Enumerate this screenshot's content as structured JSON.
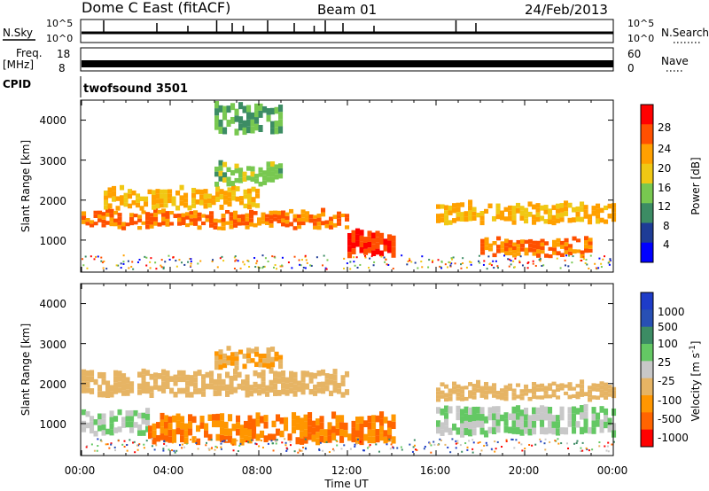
{
  "header": {
    "station": "Dome C East (fitACF)",
    "beam": "Beam 01",
    "date": "24/Feb/2013"
  },
  "strips": {
    "nsky_label": "N.Sky",
    "nsky_ticks": [
      "10^5",
      "10^0"
    ],
    "nsearch_label": "N.Search",
    "freq_label": "Freq.",
    "freq_unit": "[MHz]",
    "freq_ticks": [
      "18",
      "8"
    ],
    "nave_label": "Nave",
    "nave_ticks": [
      "60",
      "0"
    ],
    "cpid_label": "CPID",
    "cpid_value": "twofsound 3501"
  },
  "colors": {
    "power": [
      "#0000ff",
      "#1e3c96",
      "#3c8c64",
      "#78c850",
      "#f0c814",
      "#ffa000",
      "#ff5000",
      "#ff0000"
    ],
    "velocity": [
      "#ff0000",
      "#ff6400",
      "#ff9600",
      "#e6b464",
      "#c8c8c8",
      "#64c864",
      "#3c8c64",
      "#2850b4",
      "#1e3cc8"
    ]
  },
  "chart_data": [
    {
      "type": "heatmap",
      "name": "power",
      "xlabel": "",
      "ylabel": "Slant Range [km]",
      "ylim": [
        200,
        4500
      ],
      "yticks": [
        "4000",
        "3000",
        "2000",
        "1000"
      ],
      "colorbar_label": "Power [dB]",
      "colorbar_ticks": [
        "28",
        "24",
        "20",
        "16",
        "12",
        "8",
        "4"
      ],
      "bands": [
        {
          "range": [
            600,
            1200
          ],
          "time": [
            12,
            14
          ],
          "value": 28
        },
        {
          "range": [
            1300,
            1700
          ],
          "time": [
            0,
            12
          ],
          "value": 24
        },
        {
          "range": [
            1800,
            2300
          ],
          "time": [
            1,
            8
          ],
          "value": 20
        },
        {
          "range": [
            600,
            1000
          ],
          "time": [
            18,
            23
          ],
          "value": 24
        },
        {
          "range": [
            1400,
            1900
          ],
          "time": [
            16,
            24
          ],
          "value": 20
        },
        {
          "range": [
            2400,
            2900
          ],
          "time": [
            6,
            9
          ],
          "value": 14
        },
        {
          "range": [
            3700,
            4400
          ],
          "time": [
            6,
            9
          ],
          "value": 12
        }
      ]
    },
    {
      "type": "heatmap",
      "name": "velocity",
      "xlabel": "Time UT",
      "ylabel": "Slant Range [km]",
      "ylim": [
        200,
        4500
      ],
      "yticks": [
        "4000",
        "3000",
        "2000",
        "1000"
      ],
      "xticks": [
        "00:00",
        "04:00",
        "08:00",
        "12:00",
        "16:00",
        "20:00",
        "00:00"
      ],
      "colorbar_label": "Velocity [m s",
      "colorbar_unit_exp": "-1",
      "colorbar_unit_close": "]",
      "colorbar_ticks": [
        "1000",
        "500",
        "100",
        "25",
        "-25",
        "-100",
        "-500",
        "-1000"
      ],
      "bands": [
        {
          "range": [
            700,
            1300
          ],
          "time": [
            0,
            3
          ],
          "value": 100
        },
        {
          "range": [
            500,
            1200
          ],
          "time": [
            3,
            14
          ],
          "value": -100
        },
        {
          "range": [
            1700,
            2300
          ],
          "time": [
            0,
            12
          ],
          "value": 0
        },
        {
          "range": [
            700,
            1400
          ],
          "time": [
            16,
            24
          ],
          "value": 100
        },
        {
          "range": [
            1600,
            2000
          ],
          "time": [
            16,
            24
          ],
          "value": 0
        },
        {
          "range": [
            2400,
            2900
          ],
          "time": [
            6,
            9
          ],
          "value": -25
        }
      ]
    }
  ]
}
